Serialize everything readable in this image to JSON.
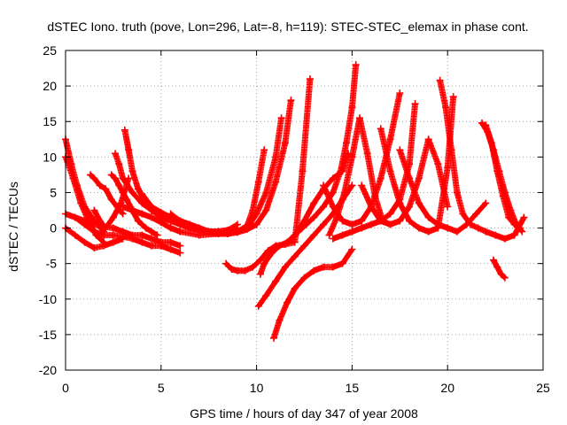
{
  "chart_data": {
    "type": "scatter",
    "title": "dSTEC Iono. truth (pove, Lon=296, Lat=-8, h=119): STEC-STEC_elemax in phase cont.",
    "xlabel": "GPS time / hours of day 347 of year 2008",
    "ylabel": "dSTEC  / TECUs",
    "xlim": [
      0,
      25
    ],
    "ylim": [
      -20,
      25
    ],
    "xticks": [
      0,
      5,
      10,
      15,
      20,
      25
    ],
    "yticks": [
      -20,
      -15,
      -10,
      -5,
      0,
      5,
      10,
      15,
      20,
      25
    ],
    "xtick_labels": [
      "0",
      "5",
      "10",
      "15",
      "20",
      "25"
    ],
    "ytick_labels": [
      "-20",
      "-15",
      "-10",
      "-5",
      "0",
      "5",
      "10",
      "15",
      "20",
      "25"
    ],
    "grid": true,
    "marker": "+",
    "color": "#ff0000",
    "series": [
      {
        "x": [
          0.0,
          0.3,
          0.6,
          1.0,
          1.5,
          2.0
        ],
        "y": [
          12.5,
          9.0,
          6.0,
          3.0,
          1.0,
          -0.5
        ]
      },
      {
        "x": [
          0.0,
          0.4,
          0.8,
          1.2,
          1.6,
          2.0
        ],
        "y": [
          10.0,
          7.0,
          3.5,
          1.0,
          -1.0,
          -2.0
        ]
      },
      {
        "x": [
          0.0,
          0.5,
          1.0,
          1.5,
          2.0,
          2.5,
          3.0,
          3.5,
          4.0,
          4.5,
          5.0,
          5.5,
          6.0
        ],
        "y": [
          2.0,
          1.5,
          0.5,
          -0.5,
          -1.0,
          -1.0,
          -1.2,
          -1.5,
          -2.0,
          -2.5,
          -2.5,
          -3.0,
          -3.5
        ]
      },
      {
        "x": [
          0.0,
          0.5,
          1.0,
          1.5,
          2.0,
          2.5,
          3.0
        ],
        "y": [
          0.0,
          -1.0,
          -2.0,
          -2.8,
          -2.5,
          -2.0,
          -1.5
        ]
      },
      {
        "x": [
          0.5,
          1.0,
          1.5,
          2.0,
          2.5,
          3.0,
          3.5,
          4.0,
          4.5,
          5.0,
          5.5,
          6.0
        ],
        "y": [
          1.5,
          1.0,
          0.5,
          0.2,
          0.0,
          -0.5,
          -1.0,
          -1.0,
          -1.5,
          -2.0,
          -2.0,
          -2.5
        ]
      },
      {
        "x": [
          1.3,
          1.5,
          1.8,
          2.1,
          2.4,
          2.7,
          3.0
        ],
        "y": [
          7.5,
          7.0,
          6.0,
          5.5,
          4.0,
          3.0,
          2.0
        ]
      },
      {
        "x": [
          1.5,
          1.8,
          2.1,
          2.5,
          2.9,
          3.3
        ],
        "y": [
          2.5,
          1.0,
          0.0,
          1.5,
          3.5,
          7.0
        ]
      },
      {
        "x": [
          2.4,
          2.6,
          2.8,
          3.0,
          3.2,
          3.4,
          3.6,
          3.8,
          4.0,
          4.2,
          4.5,
          4.8
        ],
        "y": [
          7.5,
          7.0,
          6.0,
          5.0,
          4.0,
          3.0,
          2.0,
          1.0,
          0.5,
          0.0,
          -0.5,
          -1.0
        ]
      },
      {
        "x": [
          3.1,
          3.3,
          3.5,
          3.8,
          4.1,
          4.5,
          5.0,
          5.5,
          6.0,
          6.5,
          7.0,
          7.5,
          8.0
        ],
        "y": [
          13.8,
          11.0,
          8.0,
          5.5,
          4.0,
          3.0,
          2.2,
          1.5,
          1.0,
          0.5,
          0.0,
          -0.5,
          -0.5
        ]
      },
      {
        "x": [
          2.6,
          2.8,
          3.0,
          3.5,
          4.0,
          4.5,
          5.0,
          5.5,
          6.0,
          6.5,
          7.0,
          7.5,
          8.0,
          8.5
        ],
        "y": [
          10.5,
          9.0,
          7.0,
          5.0,
          3.5,
          2.5,
          1.5,
          1.0,
          0.5,
          0.0,
          -0.3,
          -0.5,
          -0.5,
          -0.3
        ]
      },
      {
        "x": [
          4.0,
          4.5,
          5.0,
          5.5,
          6.0,
          6.5,
          7.0,
          7.5,
          8.0,
          8.5,
          9.0
        ],
        "y": [
          4.8,
          3.0,
          2.0,
          1.5,
          1.0,
          0.5,
          0.0,
          -0.5,
          -0.5,
          -0.3,
          0.5
        ]
      },
      {
        "x": [
          3.0,
          3.5,
          4.0,
          4.5,
          5.0,
          5.5,
          6.0,
          7.0,
          8.0,
          9.0
        ],
        "y": [
          3.0,
          2.5,
          2.0,
          1.5,
          0.8,
          0.0,
          -0.5,
          -1.0,
          -0.8,
          0.0
        ]
      },
      {
        "x": [
          5.5,
          6.0,
          6.5,
          7.0,
          7.5,
          8.0,
          8.5,
          9.0,
          9.5,
          9.8,
          10.1,
          10.4
        ],
        "y": [
          2.0,
          1.0,
          0.3,
          -0.2,
          -0.5,
          -0.8,
          -0.8,
          -0.5,
          0.3,
          2.5,
          6.5,
          11.0
        ]
      },
      {
        "x": [
          6.5,
          7.0,
          7.5,
          8.0,
          8.5,
          9.0,
          9.5,
          10.0,
          10.5,
          11.0,
          11.3
        ],
        "y": [
          0.0,
          -0.3,
          -0.6,
          -0.8,
          -0.8,
          -0.5,
          0.0,
          2.0,
          5.0,
          10.0,
          15.5
        ]
      },
      {
        "x": [
          7.5,
          8.0,
          8.5,
          9.0,
          9.5,
          10.0,
          10.5,
          11.0,
          11.5,
          11.8
        ],
        "y": [
          -0.5,
          -0.8,
          -0.8,
          -0.6,
          -0.2,
          0.5,
          2.5,
          6.5,
          12.0,
          18.0
        ]
      },
      {
        "x": [
          8.4,
          8.7,
          9.0,
          9.4,
          9.8,
          10.2,
          10.6,
          11.0,
          11.5,
          12.0,
          12.4,
          12.8
        ],
        "y": [
          -5.0,
          -5.8,
          -6.0,
          -6.0,
          -5.5,
          -4.5,
          -3.2,
          -2.5,
          -2.3,
          -2.0,
          8.0,
          21.0
        ]
      },
      {
        "x": [
          10.2,
          10.4,
          10.8,
          11.2,
          11.6,
          12.0,
          12.5,
          13.0,
          13.5,
          14.0,
          14.5,
          14.8
        ],
        "y": [
          -6.5,
          -5.0,
          -3.5,
          -2.5,
          -2.0,
          -1.0,
          1.0,
          3.5,
          5.5,
          7.0,
          8.0,
          10.5
        ]
      },
      {
        "x": [
          10.1,
          10.5,
          11.0,
          11.5,
          12.0,
          12.5,
          13.0,
          13.5,
          14.0,
          14.5,
          15.0
        ],
        "y": [
          -11.0,
          -9.5,
          -7.5,
          -5.5,
          -4.0,
          -2.5,
          -1.0,
          0.5,
          2.0,
          4.0,
          6.0
        ]
      },
      {
        "x": [
          10.9,
          11.2,
          11.6,
          12.0,
          12.5,
          13.0,
          13.5,
          14.0,
          14.5,
          15.0
        ],
        "y": [
          -15.5,
          -13.0,
          -10.5,
          -8.5,
          -7.0,
          -6.0,
          -5.5,
          -5.5,
          -5.0,
          -3.0
        ]
      },
      {
        "x": [
          12.2,
          12.6,
          13.0,
          13.5,
          14.0,
          14.4,
          14.7,
          15.0,
          15.2
        ],
        "y": [
          -0.5,
          0.5,
          1.5,
          3.0,
          5.0,
          8.0,
          12.0,
          17.0,
          23.0
        ]
      },
      {
        "x": [
          13.5,
          14.0,
          14.5,
          15.0,
          15.5,
          16.0,
          16.5,
          17.0,
          17.5
        ],
        "y": [
          6.0,
          3.0,
          1.0,
          0.5,
          1.0,
          3.0,
          7.0,
          12.5,
          19.0
        ]
      },
      {
        "x": [
          13.8,
          14.2,
          14.6,
          15.0,
          15.4,
          15.8,
          16.2,
          16.6,
          17.0
        ],
        "y": [
          -1.0,
          1.5,
          5.0,
          10.0,
          15.5,
          10.5,
          4.5,
          1.0,
          0.5
        ]
      },
      {
        "x": [
          14.0,
          14.5,
          15.0,
          15.5,
          16.0,
          16.5,
          17.0,
          17.5,
          18.0,
          18.3
        ],
        "y": [
          -1.5,
          -1.0,
          -0.5,
          0.0,
          0.5,
          1.0,
          2.0,
          4.0,
          9.0,
          17.5
        ]
      },
      {
        "x": [
          15.5,
          16.0,
          16.5,
          17.0,
          17.5,
          18.0,
          18.5,
          19.0,
          19.5,
          20.0
        ],
        "y": [
          6.0,
          3.0,
          1.0,
          0.5,
          1.0,
          3.0,
          7.0,
          12.5,
          9.0,
          3.0
        ]
      },
      {
        "x": [
          16.5,
          17.0,
          17.5,
          18.0,
          18.5,
          19.0,
          19.5,
          20.0,
          20.3
        ],
        "y": [
          14.0,
          8.0,
          3.5,
          1.0,
          0.0,
          -0.5,
          0.0,
          8.5,
          18.5
        ]
      },
      {
        "x": [
          17.5,
          18.0,
          18.5,
          19.0,
          19.5,
          20.0,
          20.5,
          21.0,
          21.5,
          22.0
        ],
        "y": [
          11.0,
          7.0,
          3.5,
          1.5,
          0.5,
          0.0,
          -0.5,
          0.5,
          2.0,
          3.5
        ]
      },
      {
        "x": [
          19.6,
          19.9,
          20.2,
          20.5,
          20.8,
          21.2,
          21.6,
          22.0,
          22.5,
          23.0,
          23.5,
          24.0
        ],
        "y": [
          20.8,
          17.0,
          11.0,
          5.0,
          2.0,
          0.5,
          0.0,
          -0.5,
          -1.0,
          -1.5,
          -1.0,
          1.5
        ]
      },
      {
        "x": [
          21.8,
          22.1,
          22.4,
          22.7,
          23.0,
          23.3,
          23.6,
          23.9
        ],
        "y": [
          14.8,
          13.5,
          11.0,
          8.0,
          5.0,
          2.5,
          0.5,
          -0.5
        ]
      },
      {
        "x": [
          22.0,
          22.3,
          22.6,
          22.9,
          23.2,
          23.5,
          23.8
        ],
        "y": [
          14.5,
          12.0,
          8.0,
          4.5,
          1.5,
          0.5,
          0.0
        ]
      },
      {
        "x": [
          22.4,
          22.6,
          22.8,
          23.0
        ],
        "y": [
          -4.5,
          -5.5,
          -6.5,
          -7.0
        ]
      }
    ]
  }
}
